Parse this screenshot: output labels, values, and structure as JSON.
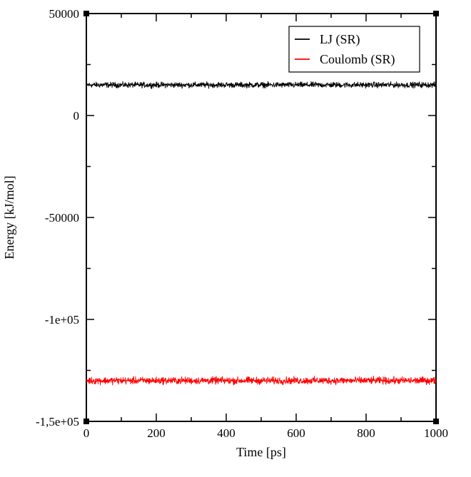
{
  "chart_data": {
    "type": "line",
    "title": "",
    "xlabel": "Time [ps]",
    "ylabel": "Energy [kJ/mol]",
    "xlim": [
      0,
      1000
    ],
    "ylim": [
      -150000,
      50000
    ],
    "x_ticks": [
      0,
      200,
      400,
      600,
      800,
      1000
    ],
    "x_tick_labels": [
      "0",
      "200",
      "400",
      "600",
      "800",
      "1000"
    ],
    "y_ticks": [
      50000,
      0,
      -50000,
      -100000,
      -150000
    ],
    "y_tick_labels": [
      "50000",
      "0",
      "-50000",
      "-1e+05",
      "-1,5e+05"
    ],
    "grid": false,
    "legend_position": "top-right",
    "series": [
      {
        "name": "LJ (SR)",
        "color": "#000000",
        "mean": 15000,
        "fluctuation": 700
      },
      {
        "name": "Coulomb (SR)",
        "color": "#ff0000",
        "mean": -130000,
        "fluctuation": 900
      }
    ]
  }
}
